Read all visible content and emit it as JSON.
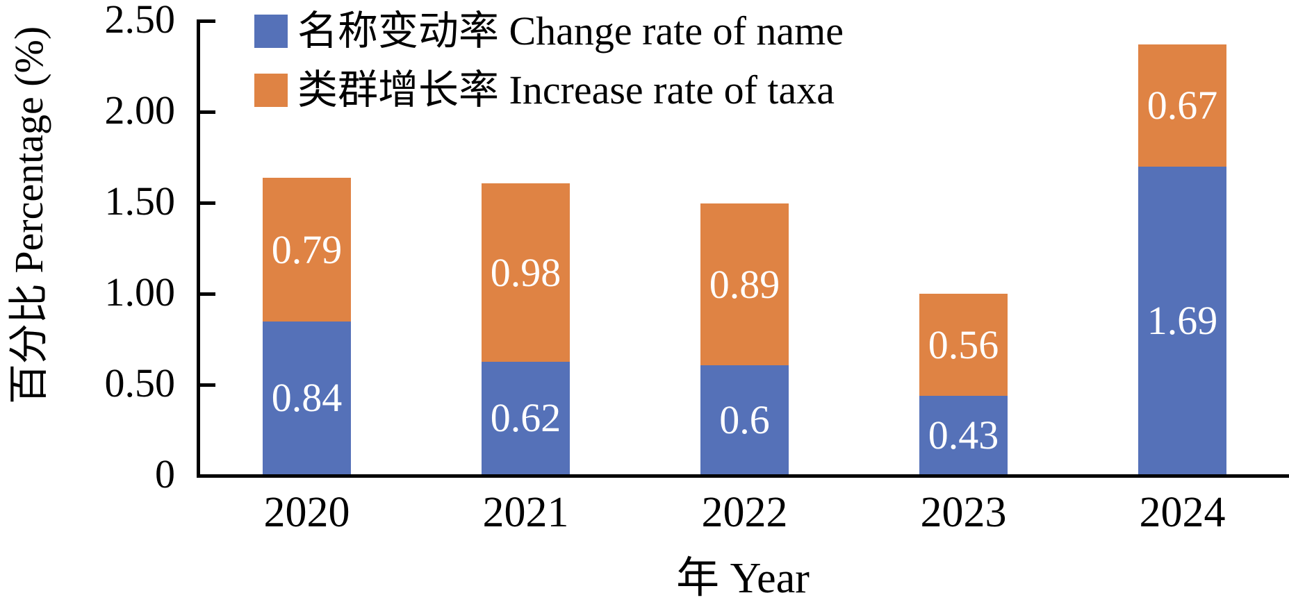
{
  "chart_data": {
    "type": "bar",
    "stacked": true,
    "title": "",
    "xlabel": "年 Year",
    "ylabel": "百分比 Percentage (%)",
    "categories": [
      "2020",
      "2021",
      "2022",
      "2023",
      "2024"
    ],
    "series": [
      {
        "name": "名称变动率 Change rate of name",
        "color": "#5571B8",
        "values": [
          0.84,
          0.62,
          0.6,
          0.43,
          1.69
        ],
        "labels": [
          "0.84",
          "0.62",
          "0.6",
          "0.43",
          "1.69"
        ]
      },
      {
        "name": "类群增长率 Increase rate of taxa",
        "color": "#DF8344",
        "values": [
          0.79,
          0.98,
          0.89,
          0.56,
          0.67
        ],
        "labels": [
          "0.79",
          "0.98",
          "0.89",
          "0.56",
          "0.67"
        ]
      }
    ],
    "ylim": [
      0,
      2.5
    ],
    "yticks": [
      {
        "value": 0,
        "label": "0"
      },
      {
        "value": 0.5,
        "label": "0.50"
      },
      {
        "value": 1.0,
        "label": "1.00"
      },
      {
        "value": 1.5,
        "label": "1.50"
      },
      {
        "value": 2.0,
        "label": "2.00"
      },
      {
        "value": 2.5,
        "label": "2.50"
      }
    ],
    "grid": false,
    "legend_position": "top-left",
    "value_label_color": "#FFFFFF",
    "axis_color": "#000000"
  }
}
